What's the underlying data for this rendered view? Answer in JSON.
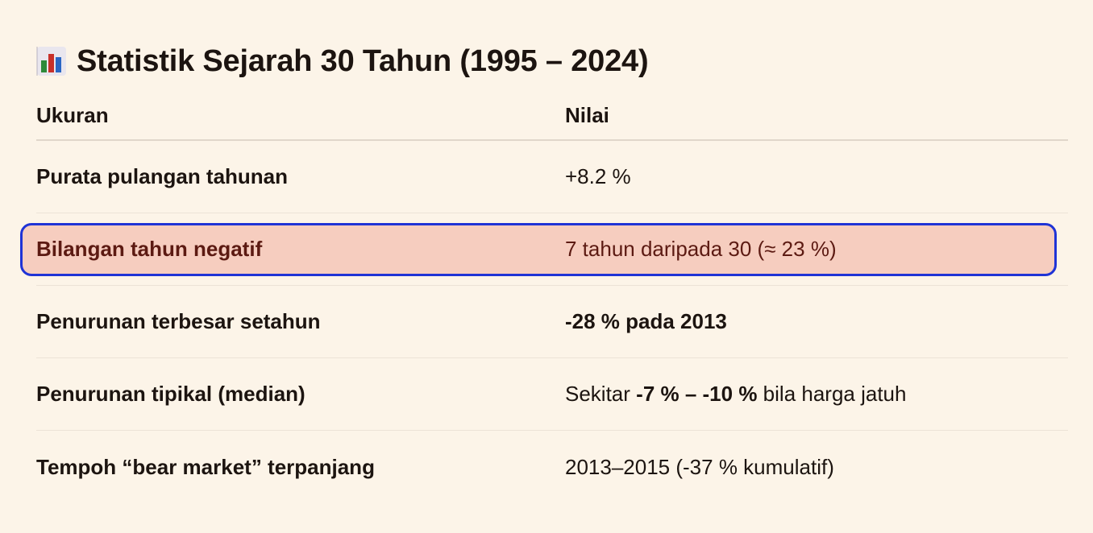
{
  "title": {
    "icon": "bar-chart-icon",
    "text": "Statistik Sejarah 30 Tahun (1995 – 2024)"
  },
  "table": {
    "headers": {
      "measure": "Ukuran",
      "value": "Nilai"
    },
    "rows": [
      {
        "label": "Purata pulangan tahunan",
        "value": "+8.2 %"
      },
      {
        "label": "Bilangan tahun negatif",
        "value": "7 tahun daripada 30 (≈ 23 %)",
        "highlighted": true
      },
      {
        "label": "Penurunan terbesar setahun",
        "value": "-28 % pada 2013"
      },
      {
        "label": "Penurunan tipikal (median)",
        "value_prefix": "Sekitar ",
        "value_bold": "-7 % – -10 %",
        "value_suffix": " bila harga jatuh"
      },
      {
        "label": "Tempoh “bear market” terpanjang",
        "value": "2013–2015 (-37 % kumulatif)"
      }
    ]
  },
  "colors": {
    "background": "#fcf4e8",
    "highlight_fill": "#f6cdbf",
    "highlight_border": "#1f33d6",
    "text": "#1c1410"
  }
}
